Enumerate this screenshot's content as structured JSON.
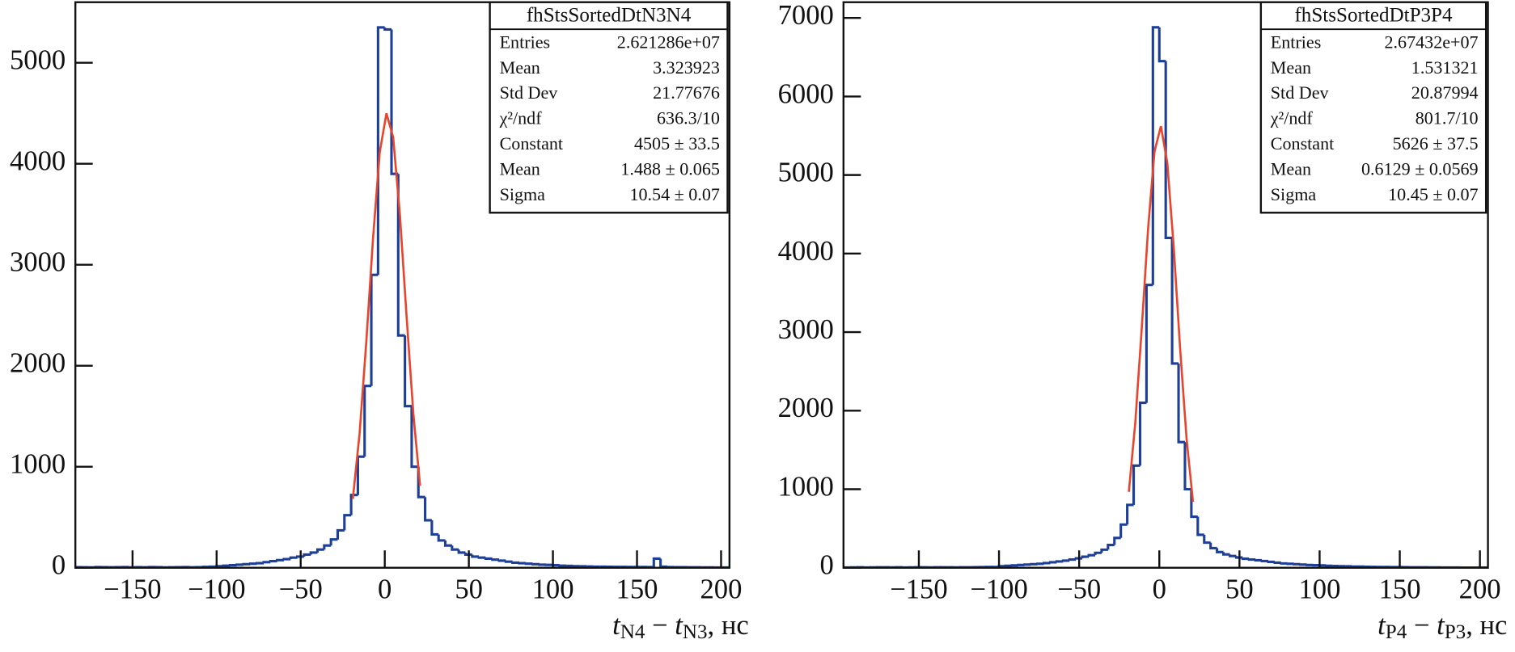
{
  "chart_data": [
    {
      "type": "histogram",
      "bins": [
        -184,
        -180,
        -176,
        -172,
        -168,
        -164,
        -160,
        -156,
        -152,
        -148,
        -144,
        -140,
        -136,
        -132,
        -128,
        -124,
        -120,
        -116,
        -112,
        -108,
        -104,
        -100,
        -96,
        -92,
        -88,
        -84,
        -80,
        -76,
        -72,
        -68,
        -64,
        -60,
        -56,
        -52,
        -48,
        -44,
        -40,
        -36,
        -32,
        -28,
        -24,
        -20,
        -16,
        -12,
        -8,
        -4,
        0,
        4,
        8,
        12,
        16,
        20,
        24,
        28,
        32,
        36,
        40,
        44,
        48,
        52,
        56,
        60,
        64,
        68,
        72,
        76,
        80,
        84,
        88,
        92,
        96,
        100,
        104,
        108,
        112,
        116,
        120,
        124,
        128,
        132,
        136,
        140,
        144,
        148,
        152,
        156,
        160,
        164,
        168,
        172,
        176,
        180,
        184,
        188,
        192,
        196,
        200,
        204
      ],
      "values": [
        5,
        4,
        3,
        6,
        5,
        4,
        5,
        6,
        3,
        5,
        4,
        6,
        5,
        3,
        4,
        5,
        6,
        4,
        5,
        8,
        10,
        15,
        20,
        25,
        30,
        35,
        40,
        45,
        55,
        65,
        75,
        85,
        100,
        110,
        130,
        150,
        180,
        220,
        280,
        370,
        520,
        720,
        1100,
        1800,
        2900,
        5350,
        5330,
        3900,
        2300,
        1600,
        1000,
        700,
        470,
        330,
        270,
        220,
        180,
        150,
        130,
        110,
        100,
        90,
        80,
        70,
        60,
        50,
        45,
        40,
        35,
        30,
        28,
        25,
        20,
        18,
        15,
        14,
        12,
        10,
        10,
        9,
        8,
        8,
        7,
        7,
        7,
        6,
        90,
        10,
        6,
        5,
        5,
        4,
        4,
        3,
        3,
        2,
        2
      ],
      "color": "#1d3f98",
      "fit": {
        "color": "#e8452c",
        "x": [
          -19,
          -15,
          -11,
          -7,
          -3,
          1,
          5,
          9,
          13,
          17,
          21
        ],
        "values": [
          681,
          1325,
          2233,
          3257,
          4114,
          4500,
          4262,
          3495,
          2482,
          1525,
          812
        ]
      },
      "stats": {
        "title": "fhStsSortedDtN3N4",
        "rows": [
          [
            "Entries",
            "2.621286e+07"
          ],
          [
            "Mean",
            "3.323923"
          ],
          [
            "Std Dev",
            "21.77676"
          ],
          [
            "χ²/ndf",
            "636.3/10"
          ],
          [
            "Constant",
            "4505 ± 33.5"
          ],
          [
            "Mean",
            "1.488 ± 0.065"
          ],
          [
            "Sigma",
            "10.54 ± 0.07"
          ]
        ]
      },
      "xlim": [
        -184,
        205
      ],
      "ylim": [
        0,
        5600
      ],
      "xticks": [
        {
          "value": -150,
          "label": "−150"
        },
        {
          "value": -100,
          "label": "−100"
        },
        {
          "value": -50,
          "label": "−50"
        },
        0,
        50,
        100,
        150,
        200
      ],
      "yticks": [
        0,
        1000,
        2000,
        3000,
        4000,
        5000
      ],
      "xlabel": [
        "t",
        "N4",
        " − ",
        "t",
        "N3",
        ", нс"
      ]
    },
    {
      "type": "histogram",
      "bins": [
        -196,
        -192,
        -188,
        -184,
        -180,
        -176,
        -172,
        -168,
        -164,
        -160,
        -156,
        -152,
        -148,
        -144,
        -140,
        -136,
        -132,
        -128,
        -124,
        -120,
        -116,
        -112,
        -108,
        -104,
        -100,
        -96,
        -92,
        -88,
        -84,
        -80,
        -76,
        -72,
        -68,
        -64,
        -60,
        -56,
        -52,
        -48,
        -44,
        -40,
        -36,
        -32,
        -28,
        -24,
        -20,
        -16,
        -12,
        -8,
        -4,
        0,
        4,
        8,
        12,
        16,
        20,
        24,
        28,
        32,
        36,
        40,
        44,
        48,
        52,
        56,
        60,
        64,
        68,
        72,
        76,
        80,
        84,
        88,
        92,
        96,
        100,
        104,
        108,
        112,
        116,
        120,
        124,
        128,
        132,
        136,
        140,
        144,
        148,
        152,
        156,
        160,
        164,
        168,
        172,
        176,
        180,
        184,
        188,
        192,
        196,
        200,
        204
      ],
      "values": [
        3,
        4,
        5,
        3,
        4,
        6,
        5,
        4,
        5,
        3,
        4,
        5,
        6,
        4,
        5,
        6,
        5,
        4,
        6,
        5,
        7,
        8,
        9,
        10,
        20,
        25,
        30,
        35,
        40,
        45,
        50,
        60,
        70,
        80,
        90,
        105,
        120,
        140,
        160,
        190,
        230,
        290,
        380,
        550,
        800,
        1300,
        2100,
        3600,
        6880,
        6450,
        4200,
        2600,
        1600,
        1000,
        650,
        420,
        320,
        250,
        200,
        170,
        150,
        130,
        115,
        105,
        95,
        85,
        75,
        65,
        55,
        50,
        45,
        40,
        35,
        32,
        30,
        25,
        22,
        20,
        18,
        15,
        14,
        12,
        11,
        10,
        9,
        8,
        8,
        7,
        6,
        5,
        5,
        4,
        4,
        3,
        3,
        3,
        2,
        2,
        2,
        2
      ],
      "color": "#1d3f98",
      "fit": {
        "color": "#e8452c",
        "x": [
          -19,
          -15,
          -11,
          -7,
          -3,
          1,
          5,
          9,
          13,
          17,
          21
        ],
        "values": [
          967,
          1843,
          3035,
          4315,
          5300,
          5622,
          5152,
          4078,
          2787,
          1646,
          839
        ]
      },
      "stats": {
        "title": "fhStsSortedDtP3P4",
        "rows": [
          [
            "Entries",
            "2.67432e+07"
          ],
          [
            "Mean",
            "1.531321"
          ],
          [
            "Std Dev",
            "20.87994"
          ],
          [
            "χ²/ndf",
            "801.7/10"
          ],
          [
            "Constant",
            "5626 ± 37.5"
          ],
          [
            "Mean",
            "0.6129 ± 0.0569"
          ],
          [
            "Sigma",
            "10.45 ± 0.07"
          ]
        ]
      },
      "xlim": [
        -197,
        205
      ],
      "ylim": [
        0,
        7200
      ],
      "xticks": [
        {
          "value": -150,
          "label": "−150"
        },
        {
          "value": -100,
          "label": "−100"
        },
        {
          "value": -50,
          "label": "−50"
        },
        0,
        50,
        100,
        150,
        200
      ],
      "yticks": [
        0,
        1000,
        2000,
        3000,
        4000,
        5000,
        6000,
        7000
      ],
      "xlabel": [
        "t",
        "P4",
        " − ",
        "t",
        "P3",
        ", нс"
      ]
    }
  ]
}
